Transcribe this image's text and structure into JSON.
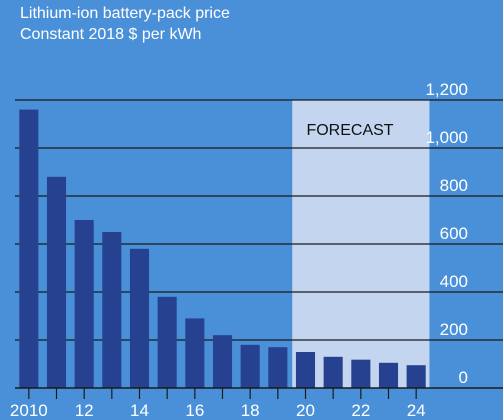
{
  "chart_data": {
    "type": "bar",
    "title": "Lithium-ion battery-pack price",
    "subtitle": "Constant 2018 $ per kWh",
    "xlabel": "",
    "ylabel": "",
    "categories": [
      "2010",
      "2011",
      "2012",
      "2013",
      "2014",
      "2015",
      "2016",
      "2017",
      "2018",
      "2019",
      "2020",
      "2021",
      "2022",
      "2023",
      "2024"
    ],
    "x_tick_labels": [
      "2010",
      "12",
      "14",
      "16",
      "18",
      "20",
      "22",
      "24"
    ],
    "y_tick_labels": [
      "1,200",
      "1,000",
      "800",
      "600",
      "400",
      "200",
      "0"
    ],
    "values": [
      1160,
      880,
      700,
      650,
      580,
      380,
      290,
      220,
      180,
      170,
      150,
      130,
      118,
      105,
      95
    ],
    "ylim": [
      0,
      1200
    ],
    "gridlines": true,
    "legend": "none",
    "forecast_annotation": {
      "label": "FORECAST",
      "start_category": "2020",
      "end_category": "2024"
    },
    "colors": {
      "background": "#4a90d9",
      "bar": "#26418f",
      "forecast_band": "#c4d5ef",
      "grid": "#1a1a1a",
      "text": "#ffffff",
      "forecast_text": "#111111"
    }
  }
}
